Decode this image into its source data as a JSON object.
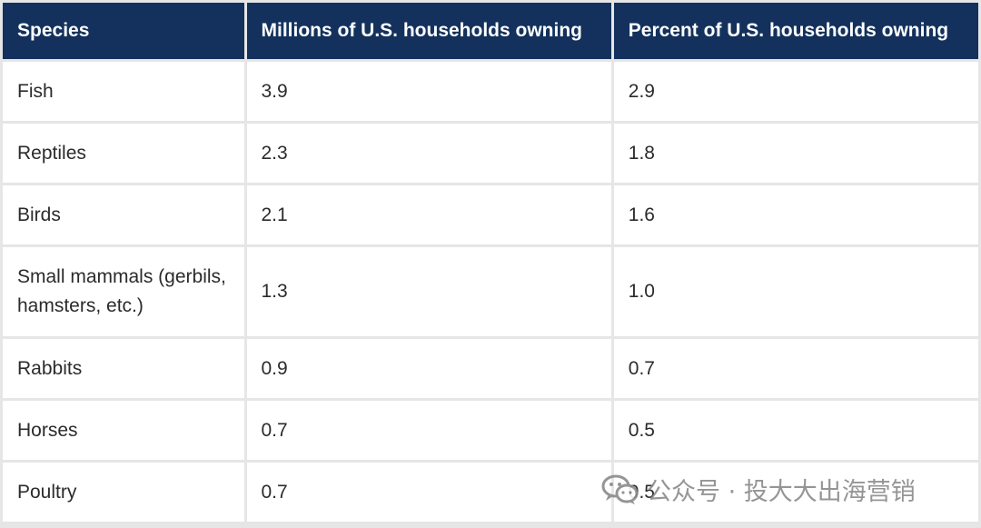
{
  "table": {
    "headers": [
      "Species",
      "Millions of U.S. households owning",
      "Percent of U.S. households owning"
    ],
    "rows": [
      {
        "species": "Fish",
        "millions": "3.9",
        "percent": "2.9"
      },
      {
        "species": "Reptiles",
        "millions": "2.3",
        "percent": "1.8"
      },
      {
        "species": "Birds",
        "millions": "2.1",
        "percent": "1.6"
      },
      {
        "species": "Small mammals (gerbils, hamsters, etc.)",
        "millions": "1.3",
        "percent": "1.0"
      },
      {
        "species": "Rabbits",
        "millions": "0.9",
        "percent": "0.7"
      },
      {
        "species": "Horses",
        "millions": "0.7",
        "percent": "0.5"
      },
      {
        "species": "Poultry",
        "millions": "0.7",
        "percent": "0.5"
      }
    ]
  },
  "watermark": {
    "text": "公众号 · 投大大出海营销",
    "icon": "wechat-icon"
  },
  "colors": {
    "header_bg": "#13315c",
    "header_text": "#ffffff",
    "grid": "#e6e6e6"
  }
}
